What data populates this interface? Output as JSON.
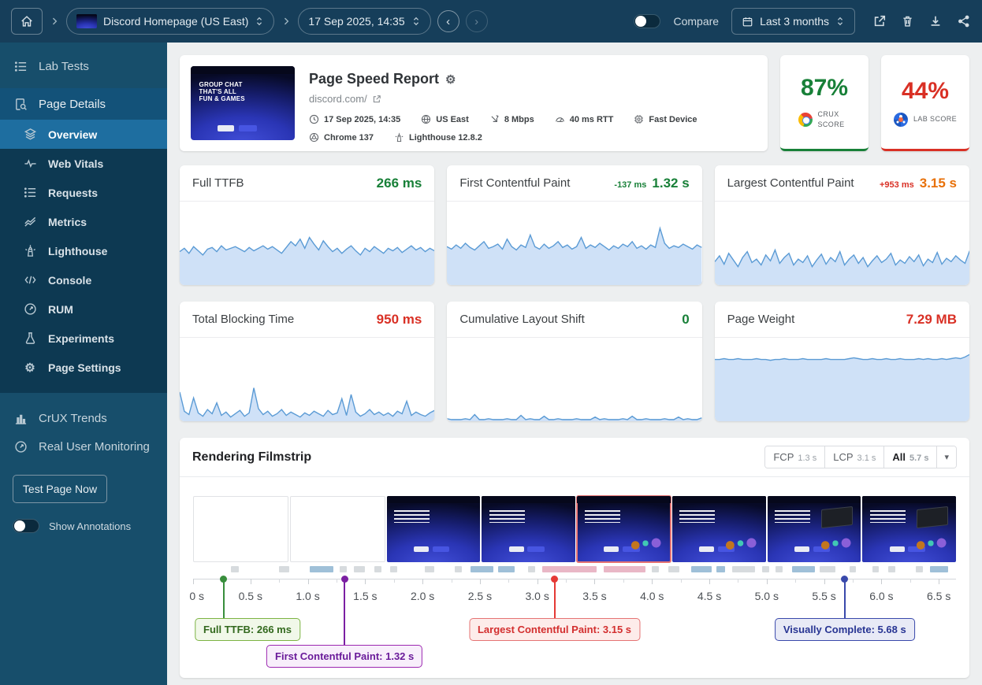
{
  "colors": {
    "good": "#188038",
    "bad": "#d93025",
    "warn": "#e8710a",
    "spark_line": "#5b9bd5",
    "spark_fill": "#cfe1f7",
    "strip": {
      "gray": "#d7dbde",
      "blue": "#9fc0d8",
      "pink": "#e9b7c6"
    }
  },
  "icons": {
    "gear": "⚙",
    "caret_down": "▾",
    "chevron_left": "‹",
    "chevron_right": "›"
  },
  "topbar": {
    "project": "Discord Homepage (US East)",
    "snapshot": "17 Sep 2025, 14:35",
    "compare_label": "Compare",
    "range_label": "Last 3 months"
  },
  "sidebar": {
    "lab_tests": "Lab Tests",
    "group": {
      "label": "Page Details",
      "items": [
        {
          "label": "Overview",
          "active": true
        },
        {
          "label": "Web Vitals"
        },
        {
          "label": "Requests"
        },
        {
          "label": "Metrics"
        },
        {
          "label": "Lighthouse"
        },
        {
          "label": "Console"
        },
        {
          "label": "RUM"
        },
        {
          "label": "Experiments"
        },
        {
          "label": "Page Settings"
        }
      ]
    },
    "crux_trends": "CrUX Trends",
    "rum": "Real User Monitoring",
    "test_button": "Test Page Now",
    "annotations_label": "Show Annotations"
  },
  "report": {
    "title": "Page Speed Report",
    "url": "discord.com/",
    "thumb_lines": [
      "GROUP CHAT",
      "THAT'S ALL",
      "FUN & GAMES"
    ],
    "meta": [
      {
        "icon": "clock-icon",
        "label": "17 Sep 2025, 14:35"
      },
      {
        "icon": "globe-icon",
        "label": "US East"
      },
      {
        "icon": "bandwidth-icon",
        "label": "8 Mbps"
      },
      {
        "icon": "rtt-icon",
        "label": "40 ms RTT"
      },
      {
        "icon": "device-icon",
        "label": "Fast Device"
      },
      {
        "icon": "browser-icon",
        "label": "Chrome 137"
      },
      {
        "icon": "lighthouse-icon",
        "label": "Lighthouse 12.8.2"
      }
    ]
  },
  "scores": [
    {
      "value": "87%",
      "label": "CRUX SCORE",
      "color": "#188038"
    },
    {
      "value": "44%",
      "label": "LAB SCORE",
      "color": "#d93025"
    }
  ],
  "chart_data": [
    {
      "type": "area",
      "title": "Full TTFB",
      "value": "266 ms",
      "value_color": "#188038",
      "delta": "",
      "delta_color": "",
      "series": [
        40,
        44,
        38,
        46,
        41,
        36,
        43,
        45,
        40,
        47,
        42,
        44,
        46,
        43,
        40,
        45,
        41,
        44,
        47,
        43,
        46,
        42,
        38,
        45,
        52,
        47,
        55,
        44,
        57,
        49,
        42,
        53,
        46,
        40,
        44,
        38,
        43,
        47,
        41,
        36,
        44,
        40,
        46,
        42,
        38,
        44,
        41,
        45,
        39,
        43,
        47,
        42,
        45,
        40,
        44,
        41
      ]
    },
    {
      "type": "area",
      "title": "First Contentful Paint",
      "value": "1.32 s",
      "value_color": "#188038",
      "delta": "-137 ms",
      "delta_color": "#188038",
      "series": [
        46,
        43,
        48,
        44,
        50,
        45,
        42,
        47,
        52,
        44,
        46,
        49,
        43,
        55,
        46,
        42,
        48,
        45,
        60,
        46,
        43,
        49,
        44,
        47,
        52,
        45,
        48,
        43,
        46,
        57,
        44,
        48,
        45,
        50,
        46,
        42,
        47,
        44,
        49,
        46,
        52,
        44,
        47,
        43,
        48,
        45,
        68,
        50,
        44,
        47,
        45,
        49,
        46,
        43,
        48,
        45
      ]
    },
    {
      "type": "area",
      "title": "Largest Contentful Paint",
      "value": "3.15 s",
      "value_color": "#e8710a",
      "delta": "+953 ms",
      "delta_color": "#d93025",
      "series": [
        28,
        35,
        25,
        38,
        30,
        22,
        33,
        40,
        27,
        31,
        24,
        36,
        29,
        42,
        26,
        33,
        38,
        24,
        31,
        27,
        35,
        22,
        30,
        37,
        25,
        33,
        28,
        40,
        24,
        31,
        36,
        26,
        33,
        22,
        29,
        35,
        27,
        31,
        38,
        24,
        30,
        26,
        34,
        28,
        36,
        23,
        31,
        27,
        39,
        25,
        32,
        28,
        35,
        30,
        26,
        41
      ]
    },
    {
      "type": "area",
      "title": "Total Blocking Time",
      "value": "950 ms",
      "value_color": "#d93025",
      "delta": "",
      "delta_color": "",
      "series": [
        35,
        12,
        8,
        28,
        10,
        6,
        14,
        9,
        22,
        7,
        11,
        5,
        9,
        13,
        6,
        10,
        40,
        15,
        8,
        12,
        6,
        9,
        14,
        7,
        11,
        8,
        5,
        10,
        7,
        12,
        9,
        6,
        13,
        8,
        10,
        27,
        7,
        32,
        11,
        6,
        9,
        14,
        8,
        11,
        7,
        10,
        6,
        12,
        9,
        24,
        7,
        11,
        8,
        6,
        10,
        13
      ]
    },
    {
      "type": "area",
      "title": "Cumulative Layout Shift",
      "value": "0",
      "value_color": "#188038",
      "delta": "",
      "delta_color": "",
      "series": [
        3,
        2,
        2,
        2,
        3,
        2,
        8,
        2,
        2,
        3,
        2,
        2,
        2,
        3,
        2,
        2,
        7,
        2,
        3,
        2,
        2,
        6,
        2,
        2,
        3,
        2,
        2,
        2,
        3,
        2,
        2,
        2,
        5,
        2,
        3,
        2,
        2,
        2,
        3,
        2,
        6,
        2,
        2,
        3,
        2,
        2,
        2,
        3,
        2,
        2,
        5,
        2,
        3,
        2,
        2,
        4
      ]
    },
    {
      "type": "area",
      "title": "Page Weight",
      "value": "7.29 MB",
      "value_color": "#d93025",
      "delta": "",
      "delta_color": "",
      "series": [
        74,
        74,
        75,
        74,
        74,
        75,
        74,
        74,
        74,
        75,
        74,
        74,
        73,
        74,
        74,
        75,
        74,
        74,
        74,
        75,
        74,
        74,
        74,
        74,
        75,
        74,
        74,
        74,
        74,
        75,
        76,
        75,
        74,
        74,
        75,
        74,
        74,
        75,
        74,
        74,
        75,
        74,
        74,
        74,
        75,
        74,
        75,
        74,
        74,
        75,
        74,
        75,
        76,
        75,
        77,
        80
      ]
    }
  ],
  "filmstrip": {
    "title": "Rendering Filmstrip",
    "buttons": [
      {
        "label": "FCP",
        "time": "1.3 s",
        "active": false
      },
      {
        "label": "LCP",
        "time": "3.1 s",
        "active": false
      },
      {
        "label": "All",
        "time": "5.7 s",
        "active": true
      }
    ],
    "frames": [
      {
        "type": "blank"
      },
      {
        "type": "blank"
      },
      {
        "type": "page",
        "variant": 1
      },
      {
        "type": "page",
        "variant": 1
      },
      {
        "type": "page",
        "variant": 2,
        "highlight": true
      },
      {
        "type": "page",
        "variant": 2
      },
      {
        "type": "page",
        "variant": 3
      },
      {
        "type": "page",
        "variant": 3
      }
    ],
    "strip_segments": [
      {
        "t0": 0.33,
        "t1": 0.4,
        "c": "gray"
      },
      {
        "t0": 0.75,
        "t1": 0.84,
        "c": "gray"
      },
      {
        "t0": 1.02,
        "t1": 1.22,
        "c": "blue"
      },
      {
        "t0": 1.28,
        "t1": 1.34,
        "c": "gray"
      },
      {
        "t0": 1.4,
        "t1": 1.5,
        "c": "gray"
      },
      {
        "t0": 1.58,
        "t1": 1.64,
        "c": "gray"
      },
      {
        "t0": 1.72,
        "t1": 1.78,
        "c": "gray"
      },
      {
        "t0": 2.02,
        "t1": 2.1,
        "c": "gray"
      },
      {
        "t0": 2.28,
        "t1": 2.34,
        "c": "gray"
      },
      {
        "t0": 2.42,
        "t1": 2.62,
        "c": "blue"
      },
      {
        "t0": 2.66,
        "t1": 2.8,
        "c": "blue"
      },
      {
        "t0": 2.92,
        "t1": 2.98,
        "c": "gray"
      },
      {
        "t0": 3.04,
        "t1": 3.52,
        "c": "pink"
      },
      {
        "t0": 3.58,
        "t1": 3.94,
        "c": "pink"
      },
      {
        "t0": 4.0,
        "t1": 4.06,
        "c": "gray"
      },
      {
        "t0": 4.14,
        "t1": 4.24,
        "c": "gray"
      },
      {
        "t0": 4.34,
        "t1": 4.52,
        "c": "blue"
      },
      {
        "t0": 4.56,
        "t1": 4.64,
        "c": "blue"
      },
      {
        "t0": 4.7,
        "t1": 4.9,
        "c": "gray"
      },
      {
        "t0": 4.96,
        "t1": 5.02,
        "c": "gray"
      },
      {
        "t0": 5.08,
        "t1": 5.14,
        "c": "gray"
      },
      {
        "t0": 5.22,
        "t1": 5.42,
        "c": "blue"
      },
      {
        "t0": 5.46,
        "t1": 5.6,
        "c": "gray"
      },
      {
        "t0": 5.72,
        "t1": 5.78,
        "c": "gray"
      },
      {
        "t0": 5.92,
        "t1": 5.98,
        "c": "gray"
      },
      {
        "t0": 6.06,
        "t1": 6.12,
        "c": "gray"
      },
      {
        "t0": 6.3,
        "t1": 6.36,
        "c": "gray"
      },
      {
        "t0": 6.42,
        "t1": 6.58,
        "c": "blue"
      }
    ],
    "axis": {
      "max_s": 6.65,
      "minor_step_s": 0.25,
      "ticks": [
        {
          "t": 0,
          "label": "0 s"
        },
        {
          "t": 0.5,
          "label": "0.5 s"
        },
        {
          "t": 1.0,
          "label": "1.0 s"
        },
        {
          "t": 1.5,
          "label": "1.5 s"
        },
        {
          "t": 2.0,
          "label": "2.0 s"
        },
        {
          "t": 2.5,
          "label": "2.5 s"
        },
        {
          "t": 3.0,
          "label": "3.0 s"
        },
        {
          "t": 3.5,
          "label": "3.5 s"
        },
        {
          "t": 4.0,
          "label": "4.0 s"
        },
        {
          "t": 4.5,
          "label": "4.5 s"
        },
        {
          "t": 5.0,
          "label": "5.0 s"
        },
        {
          "t": 5.5,
          "label": "5.5 s"
        },
        {
          "t": 6.0,
          "label": "6.0 s"
        },
        {
          "t": 6.5,
          "label": "6.5 s"
        }
      ]
    },
    "markers": [
      {
        "label": "Full TTFB: 266 ms",
        "time_s": 0.266,
        "row": 1,
        "dot": "#388e3c",
        "border": "#7cb342",
        "bg": "#f1f8e9",
        "text": "#33691e"
      },
      {
        "label": "First Contentful Paint: 1.32 s",
        "time_s": 1.32,
        "row": 2,
        "dot": "#7b1fa2",
        "border": "#9c27b0",
        "bg": "#f8effb",
        "text": "#6a1b9a"
      },
      {
        "label": "Largest Contentful Paint: 3.15 s",
        "time_s": 3.15,
        "row": 1,
        "dot": "#e53935",
        "border": "#e57373",
        "bg": "#fdecea",
        "text": "#d32f2f"
      },
      {
        "label": "Visually Complete: 5.68 s",
        "time_s": 5.68,
        "row": 1,
        "dot": "#3949ab",
        "border": "#3949ab",
        "bg": "#e8eaf6",
        "text": "#283593"
      }
    ]
  }
}
